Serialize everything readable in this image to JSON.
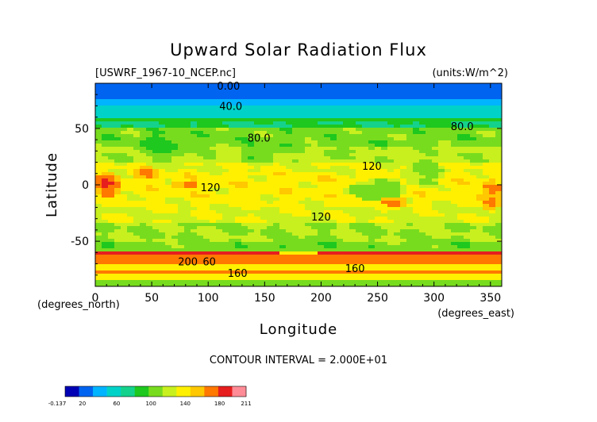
{
  "chart_data": {
    "type": "heatmap",
    "title": "Upward Solar Radiation Flux",
    "file_label": "[USWRF_1967-10_NCEP.nc]",
    "units_label": "(units:W/m^2)",
    "xlabel": "Longitude",
    "ylabel": "Latitude",
    "x_unit_label": "(degrees_east)",
    "y_unit_label": "(degrees_north)",
    "xlim": [
      0,
      360
    ],
    "ylim": [
      -90,
      90
    ],
    "x_ticks": [
      0,
      50,
      100,
      150,
      200,
      250,
      300,
      350
    ],
    "y_ticks": [
      -50,
      0,
      50
    ],
    "contour_interval_text": "CONTOUR INTERVAL = 2.000E+01",
    "contour_labels": [
      {
        "text": "0.00",
        "x": 118,
        "y": 88
      },
      {
        "text": "40.0",
        "x": 120,
        "y": 70
      },
      {
        "text": "80.0",
        "x": 145,
        "y": 42
      },
      {
        "text": "80.0",
        "x": 325,
        "y": 52
      },
      {
        "text": "120",
        "x": 245,
        "y": 17
      },
      {
        "text": "120",
        "x": 102,
        "y": -2
      },
      {
        "text": "120",
        "x": 200,
        "y": -28
      },
      {
        "text": "200",
        "x": 82,
        "y": -68
      },
      {
        "text": "60",
        "x": 101,
        "y": -68
      },
      {
        "text": "160",
        "x": 126,
        "y": -78
      },
      {
        "text": "160",
        "x": 230,
        "y": -74
      }
    ],
    "colorbar": {
      "min_label": "-0.137",
      "max_label": "211",
      "tick_labels": [
        "20",
        "60",
        "100",
        "140",
        "180"
      ],
      "levels": [
        -0.137,
        20,
        40,
        60,
        80,
        100,
        120,
        140,
        160,
        180,
        200,
        211
      ],
      "colors": [
        "#0000b4",
        "#0064f0",
        "#00b4ff",
        "#00d2c8",
        "#14d28c",
        "#1ec81e",
        "#78dc1e",
        "#c8f01e",
        "#fff000",
        "#ffc800",
        "#ff7800",
        "#e61e1e",
        "#ff8c96"
      ]
    },
    "zonal_bands": [
      {
        "lat_from": 90,
        "lat_to": 77,
        "value": 5
      },
      {
        "lat_from": 77,
        "lat_to": 70,
        "value": 30
      },
      {
        "lat_from": 70,
        "lat_to": 60,
        "value": 55
      },
      {
        "lat_from": 60,
        "lat_to": 50,
        "value": 80
      },
      {
        "lat_from": 50,
        "lat_to": 35,
        "value": 110
      },
      {
        "lat_from": 35,
        "lat_to": 20,
        "value": 125
      },
      {
        "lat_from": 20,
        "lat_to": 10,
        "value": 140
      },
      {
        "lat_from": 10,
        "lat_to": -10,
        "value": 150
      },
      {
        "lat_from": -10,
        "lat_to": -20,
        "value": 145
      },
      {
        "lat_from": -20,
        "lat_to": -35,
        "value": 138
      },
      {
        "lat_from": -35,
        "lat_to": -50,
        "value": 120
      },
      {
        "lat_from": -50,
        "lat_to": -58,
        "value": 110
      },
      {
        "lat_from": -58,
        "lat_to": -62,
        "value": 205
      },
      {
        "lat_from": -62,
        "lat_to": -70,
        "value": 185
      },
      {
        "lat_from": -70,
        "lat_to": -75,
        "value": 150
      },
      {
        "lat_from": -75,
        "lat_to": -80,
        "value": 190
      },
      {
        "lat_from": -80,
        "lat_to": -85,
        "value": 140
      },
      {
        "lat_from": -85,
        "lat_to": -90,
        "value": 110
      }
    ],
    "anomalies": [
      {
        "lon": 10,
        "lat": 0,
        "rlon": 12,
        "rlat": 12,
        "value": 195
      },
      {
        "lon": 80,
        "lat": 0,
        "rlon": 12,
        "rlat": 4,
        "value": 190
      },
      {
        "lon": 45,
        "lat": 10,
        "rlon": 10,
        "rlat": 6,
        "value": 185
      },
      {
        "lon": 250,
        "lat": -5,
        "rlon": 25,
        "rlat": 10,
        "value": 100
      },
      {
        "lon": 265,
        "lat": -15,
        "rlon": 12,
        "rlat": 5,
        "value": 195
      },
      {
        "lon": 290,
        "lat": 10,
        "rlon": 18,
        "rlat": 12,
        "value": 110
      },
      {
        "lon": 350,
        "lat": -10,
        "rlon": 10,
        "rlat": 15,
        "value": 190
      },
      {
        "lon": 60,
        "lat": 35,
        "rlon": 25,
        "rlat": 12,
        "value": 95
      },
      {
        "lon": 150,
        "lat": 30,
        "rlon": 20,
        "rlat": 10,
        "value": 105
      },
      {
        "lon": 230,
        "lat": 35,
        "rlon": 18,
        "rlat": 8,
        "value": 110
      },
      {
        "lon": 180,
        "lat": -55,
        "rlon": 40,
        "rlat": 6,
        "value": 100
      },
      {
        "lon": 300,
        "lat": -30,
        "rlon": 20,
        "rlat": 10,
        "value": 135
      }
    ]
  }
}
